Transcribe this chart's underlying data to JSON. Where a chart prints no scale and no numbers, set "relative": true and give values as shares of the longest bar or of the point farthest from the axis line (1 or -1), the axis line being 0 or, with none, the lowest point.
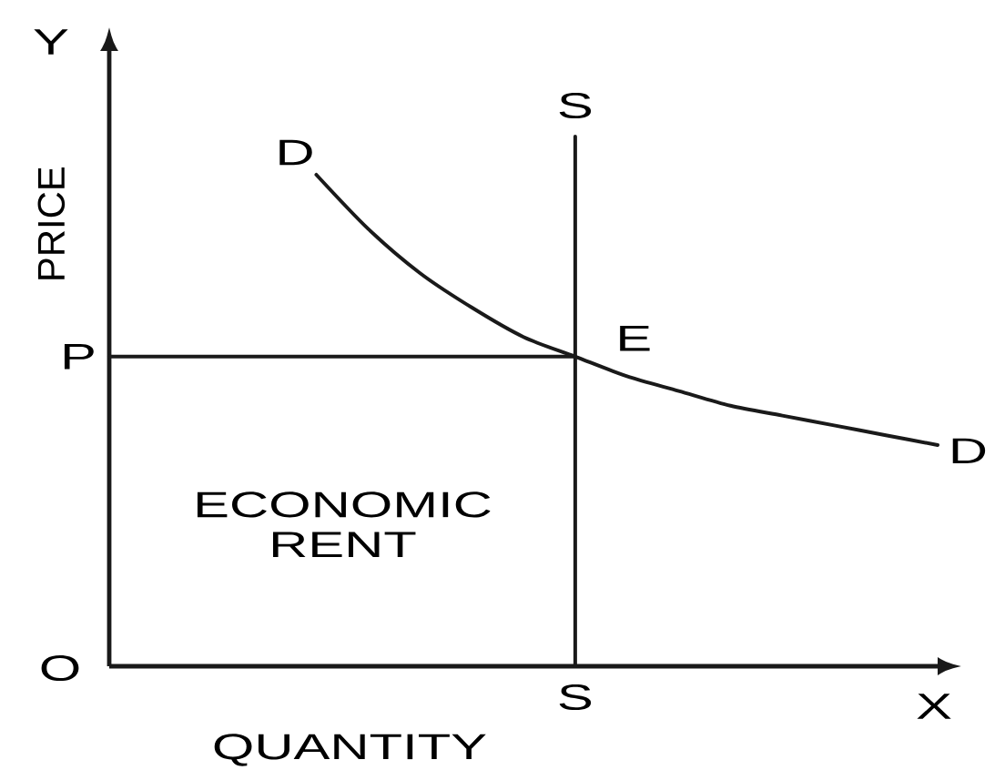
{
  "chart_data": {
    "type": "line",
    "relative": true,
    "xlabel": "QUANTITY",
    "ylabel": "PRICE",
    "categories": [
      null,
      null,
      null,
      null,
      null,
      null,
      null,
      null,
      null,
      null,
      null,
      null,
      null,
      null,
      null,
      null,
      null
    ],
    "series": [
      {
        "name": "D",
        "color": "#1a1a1a",
        "values": [
          null,
          null,
          null,
          null,
          1.0,
          0.89,
          0.8,
          0.73,
          0.67,
          0.63,
          0.59,
          0.56,
          0.53,
          0.51,
          0.49,
          0.47,
          0.45
        ]
      },
      {
        "name": "P",
        "color": "#1a1a1a",
        "values": [
          0.63,
          0.63,
          0.63,
          0.63,
          0.63,
          0.63,
          0.63,
          0.63,
          0.63,
          0.63,
          null,
          null,
          null,
          null,
          null,
          null,
          null
        ]
      }
    ],
    "annotations": [
      "Y",
      "X",
      "O",
      "ECONOMIC RENT",
      "E",
      "S",
      "S"
    ]
  }
}
